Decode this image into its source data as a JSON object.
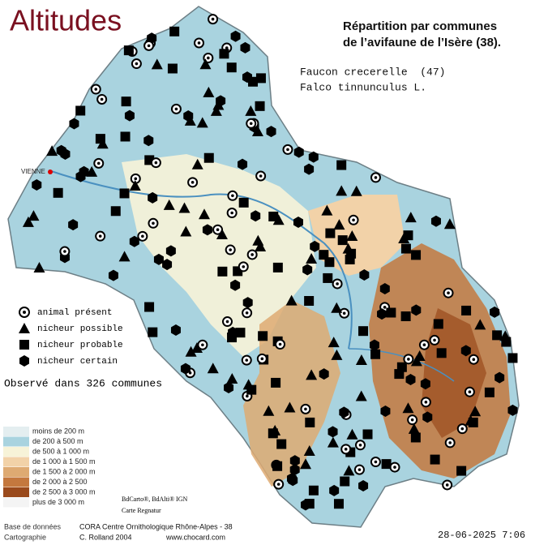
{
  "header": {
    "title": "Altitudes",
    "subtitle_1": "Répartition par communes",
    "subtitle_2": "de l’avifaune de l’Isère (38).",
    "species": "Faucon crecerelle  (47)",
    "latin": "Falco tinnunculus L."
  },
  "legend": {
    "items": [
      "animal présent",
      "nicheur possible",
      "nicheur probable",
      "nicheur certain"
    ],
    "observed": "Observé dans 326 communes"
  },
  "altitude_legend": [
    {
      "label": "moins de 200 m",
      "color": "#e4eef0"
    },
    {
      "label": "de 200 à 500 m",
      "color": "#a9d3df"
    },
    {
      "label": "de 500 à 1 000 m",
      "color": "#f7f3d8"
    },
    {
      "label": "de 1 000 à 1 500 m",
      "color": "#f2d2a8"
    },
    {
      "label": "de 1 500 à 2 000 m",
      "color": "#deaa72"
    },
    {
      "label": "de 2 000 à 2 500",
      "color": "#c4783e"
    },
    {
      "label": "de 2 500 à 3 000 m",
      "color": "#9a4a1c"
    },
    {
      "label": "plus de 3 000 m",
      "color": "#f4f4f4"
    }
  ],
  "credits": {
    "ign": "BdCarto®, BdAlti® IGN",
    "regnatur": "Carte Regnatur",
    "city": "VIENNE"
  },
  "footer": {
    "db_label": "Base de données",
    "db": "CORA Centre Ornithologique Rhône-Alpes - 38",
    "carto_label": "Cartographie",
    "carto": "C. Rolland 2004",
    "site": "www.chocard.com",
    "date": "28-06-2025 7:06"
  }
}
